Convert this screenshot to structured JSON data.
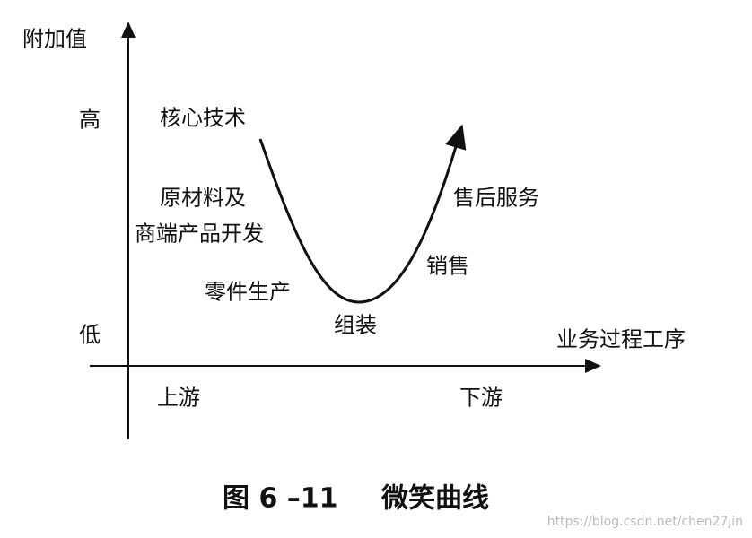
{
  "axes": {
    "y_label": "附加值",
    "x_label": "业务过程工序",
    "high": "高",
    "low": "低",
    "upstream": "上游",
    "downstream": "下游"
  },
  "stages": {
    "core_tech": "核心技术",
    "materials_line1": "原材料及",
    "materials_line2": "商端产品开发",
    "parts": "零件生产",
    "assembly": "组装",
    "sales": "销售",
    "after_sales": "售后服务"
  },
  "caption": {
    "figure": "图 6 –11",
    "title": "微笑曲线"
  },
  "watermark": "https://blog.csdn.net/chen27jin"
}
